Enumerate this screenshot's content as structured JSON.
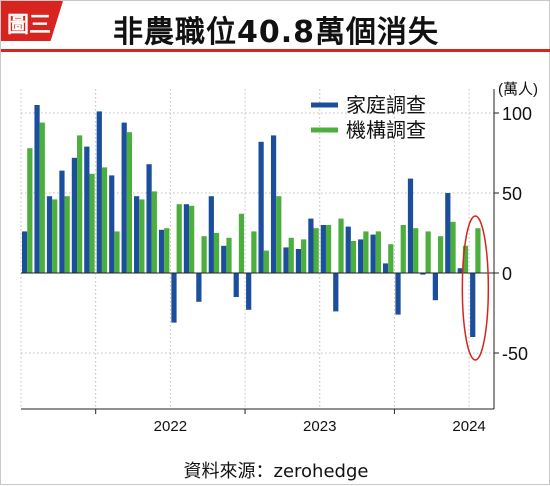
{
  "badge": "圖三",
  "title": "非農職位40.8萬個消失",
  "source": "資料來源：zerohedge",
  "chart_data": {
    "type": "bar",
    "unit_label": "(萬人)",
    "ylim": [
      -85,
      115
    ],
    "yticks": [
      100,
      50,
      0,
      -50
    ],
    "ytick_labels": [
      "100",
      "50",
      "0",
      "-50"
    ],
    "xtick_labels": [
      "2022",
      "2023",
      "2024"
    ],
    "grid": true,
    "legend_position": "top-right",
    "colors": {
      "家庭調查": "#1b4f9c",
      "機構調查": "#4caf3d"
    },
    "months": [
      "2021-07",
      "2021-08",
      "2021-09",
      "2021-10",
      "2021-11",
      "2021-12",
      "2022-01",
      "2022-02",
      "2022-03",
      "2022-04",
      "2022-05",
      "2022-06",
      "2022-07",
      "2022-08",
      "2022-09",
      "2022-10",
      "2022-11",
      "2022-12",
      "2023-01",
      "2023-02",
      "2023-03",
      "2023-04",
      "2023-05",
      "2023-06",
      "2023-07",
      "2023-08",
      "2023-09",
      "2023-10",
      "2023-11",
      "2023-12",
      "2024-01",
      "2024-02",
      "2024-03",
      "2024-04",
      "2024-05",
      "2024-06",
      "2024-07",
      "2024-08"
    ],
    "series": [
      {
        "name": "家庭調查",
        "values": [
          26,
          105,
          48,
          64,
          72,
          79,
          101,
          61,
          94,
          48,
          68,
          27,
          -31,
          43,
          -18,
          48,
          17,
          -15,
          -23,
          82,
          86,
          16,
          15,
          34,
          30,
          -24,
          29,
          21,
          24,
          6,
          -26,
          59,
          -1,
          -17,
          50,
          3,
          -40,
          null
        ]
      },
      {
        "name": "機構調查",
        "values": [
          78,
          94,
          46,
          48,
          86,
          62,
          66,
          26,
          88,
          46,
          51,
          28,
          43,
          42,
          23,
          25,
          22,
          37,
          26,
          14,
          48,
          22,
          21,
          28,
          30,
          34,
          20,
          26,
          26,
          18,
          30,
          28,
          26,
          23,
          32,
          17,
          28,
          null
        ]
      }
    ],
    "highlight_month": "2024-07"
  }
}
